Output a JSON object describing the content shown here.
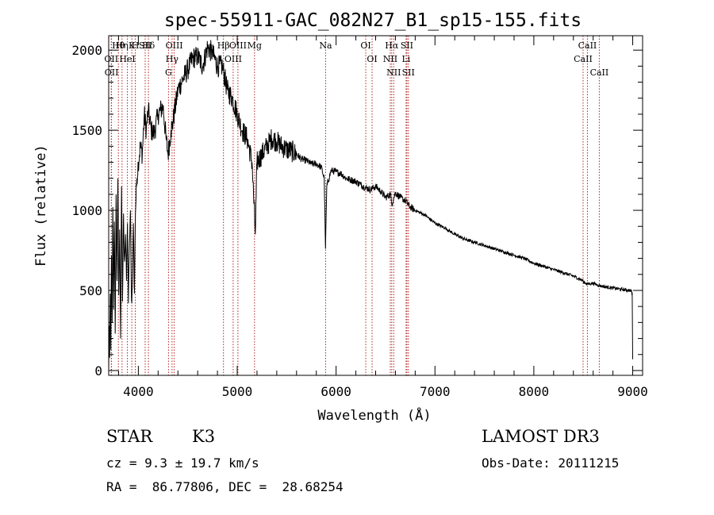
{
  "chart_data": {
    "type": "line",
    "title": "spec-55911-GAC_082N27_B1_sp15-155.fits",
    "xlabel": "Wavelength (Å)",
    "ylabel": "Flux (relative)",
    "xlim": [
      3700,
      9100
    ],
    "ylim": [
      -30,
      2090
    ],
    "xticks": [
      4000,
      5000,
      6000,
      7000,
      8000,
      9000
    ],
    "yticks": [
      0,
      500,
      1000,
      1500,
      2000
    ],
    "grid": false,
    "line_color": "#000000",
    "marker_color": "#b22222",
    "spectrum_anchors": {
      "x": [
        3700,
        3705,
        3710,
        3716,
        3722,
        3728,
        3735,
        3742,
        3750,
        3758,
        3766,
        3775,
        3784,
        3793,
        3802,
        3811,
        3820,
        3830,
        3840,
        3850,
        3860,
        3870,
        3880,
        3890,
        3900,
        3910,
        3920,
        3930,
        3940,
        3950,
        3960,
        3970,
        3985,
        4000,
        4020,
        4040,
        4060,
        4080,
        4100,
        4130,
        4160,
        4200,
        4250,
        4280,
        4300,
        4330,
        4350,
        4400,
        4450,
        4500,
        4550,
        4600,
        4650,
        4700,
        4750,
        4800,
        4850,
        4900,
        4950,
        5000,
        5050,
        5100,
        5150,
        5183,
        5200,
        5250,
        5300,
        5350,
        5400,
        5450,
        5500,
        5550,
        5600,
        5650,
        5700,
        5750,
        5800,
        5850,
        5880,
        5893,
        5906,
        5950,
        6000,
        6050,
        6100,
        6150,
        6200,
        6250,
        6300,
        6350,
        6400,
        6450,
        6500,
        6550,
        6563,
        6600,
        6650,
        6700,
        6750,
        6800,
        6900,
        7000,
        7100,
        7200,
        7300,
        7400,
        7500,
        7600,
        7700,
        7800,
        7900,
        8000,
        8100,
        8200,
        8300,
        8400,
        8498,
        8500,
        8542,
        8600,
        8662,
        8700,
        8800,
        8900,
        8980,
        8995,
        9000
      ],
      "y": [
        0,
        280,
        80,
        480,
        130,
        720,
        300,
        1020,
        380,
        930,
        230,
        1100,
        560,
        1200,
        470,
        880,
        200,
        1150,
        430,
        980,
        680,
        850,
        560,
        920,
        420,
        800,
        1000,
        440,
        520,
        920,
        480,
        980,
        1200,
        1300,
        1400,
        1350,
        1600,
        1500,
        1630,
        1500,
        1480,
        1600,
        1650,
        1450,
        1350,
        1500,
        1550,
        1750,
        1820,
        1880,
        1950,
        1960,
        1900,
        2020,
        1980,
        1900,
        1900,
        1750,
        1700,
        1600,
        1500,
        1450,
        1300,
        850,
        1300,
        1350,
        1400,
        1450,
        1430,
        1400,
        1380,
        1370,
        1350,
        1320,
        1310,
        1290,
        1290,
        1270,
        1200,
        760,
        1150,
        1250,
        1240,
        1230,
        1200,
        1190,
        1180,
        1160,
        1140,
        1130,
        1150,
        1120,
        1080,
        1100,
        1040,
        1110,
        1080,
        1060,
        1020,
        1000,
        970,
        920,
        890,
        850,
        820,
        800,
        780,
        760,
        740,
        720,
        700,
        670,
        650,
        630,
        610,
        590,
        560,
        555,
        540,
        545,
        530,
        525,
        515,
        505,
        500,
        480,
        70
      ]
    },
    "line_markers": [
      {
        "labels": [
          "Hθ",
          "OII",
          "OII"
        ],
        "x": [
          3798,
          3726,
          3729
        ]
      },
      {
        "labels": [
          "Hη"
        ],
        "x": [
          3835
        ]
      },
      {
        "labels": [
          "K",
          "HeI"
        ],
        "x": [
          3934,
          3889
        ]
      },
      {
        "labels": [
          "H"
        ],
        "x": [
          3969
        ]
      },
      {
        "labels": [
          "SII"
        ],
        "x": [
          4069
        ]
      },
      {
        "labels": [
          "Hδ"
        ],
        "x": [
          4102
        ]
      },
      {
        "labels": [
          "OIII",
          "Hγ",
          "G"
        ],
        "x": [
          4363,
          4341,
          4305
        ]
      },
      {
        "labels": [
          "Hβ"
        ],
        "x": [
          4861
        ]
      },
      {
        "labels": [
          "OIII",
          "OIII"
        ],
        "x": [
          5007,
          4959
        ]
      },
      {
        "labels": [
          "Mg"
        ],
        "x": [
          5175
        ]
      },
      {
        "labels": [
          "Na"
        ],
        "x": [
          5894
        ]
      },
      {
        "labels": [
          "OI",
          "OI"
        ],
        "x": [
          6300,
          6364
        ]
      },
      {
        "labels": [
          "Hα",
          "NII",
          "NII"
        ],
        "x": [
          6563,
          6548,
          6583
        ]
      },
      {
        "labels": [
          "SII",
          "Li",
          "SII"
        ],
        "x": [
          6716,
          6708,
          6731
        ]
      },
      {
        "labels": [
          "CaII",
          "CaII",
          "CaII"
        ],
        "x": [
          8542,
          8498,
          8662
        ]
      }
    ]
  },
  "info": {
    "object_class": "STAR",
    "subclass": "K3",
    "survey": "LAMOST DR3",
    "cz_line": "cz = 9.3 ± 19.7 km/s",
    "obs_date_line": "Obs-Date: 20111215",
    "radec_line": "RA =  86.77806, DEC =  28.68254"
  }
}
